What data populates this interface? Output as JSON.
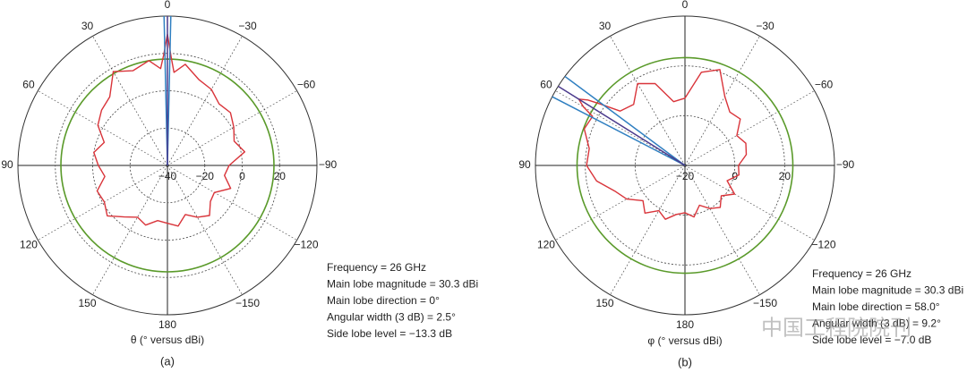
{
  "chart_data": [
    {
      "type": "polar",
      "axis_label": "θ (° versus dBi)",
      "panel_label": "(a)",
      "annotations": [
        "Frequency = 26 GHz",
        "Main lobe magnitude = 30.3 dBi",
        "Main lobe direction = 0°",
        "Angular width (3 dB) = 2.5°",
        "Side lobe level = −13.3 dB"
      ],
      "theta": [
        -180,
        -170,
        -160,
        -150,
        -140,
        -130,
        -120,
        -110,
        -100,
        -90,
        -80,
        -70,
        -60,
        -50,
        -40,
        -30,
        -20,
        -10,
        -4,
        -2,
        0,
        2,
        4,
        10,
        20,
        30,
        40,
        50,
        60,
        70,
        80,
        90,
        100,
        110,
        120,
        130,
        140,
        150,
        160,
        170
      ],
      "values": [
        -9,
        -7,
        -12,
        -8,
        -5,
        -10,
        -11,
        -4,
        -9,
        -7,
        2,
        -2,
        1,
        4,
        3,
        7,
        9,
        15,
        10,
        18,
        30.3,
        19,
        12,
        17,
        14,
        18,
        8,
        6,
        3,
        -4,
        0,
        -3,
        -6,
        0,
        -1,
        2,
        -4,
        -8,
        -6,
        -10
      ],
      "color": "#d9343a",
      "rlim": [
        -40,
        40
      ],
      "rticks": [
        {
          "value": -40,
          "label": "−40"
        },
        {
          "value": -20,
          "label": "−20"
        },
        0,
        20
      ],
      "thetaticks": [
        0,
        {
          "value": -30,
          "label": "−30"
        },
        30,
        60,
        {
          "value": -60,
          "label": "−60"
        },
        90,
        {
          "value": -90,
          "label": "−90"
        },
        120,
        {
          "value": -120,
          "label": "−120"
        },
        150,
        {
          "value": -150,
          "label": "−150"
        },
        180
      ],
      "sidelobe_circle": {
        "r": 17,
        "color": "#5a9a2a"
      },
      "reference_lines": [
        {
          "angle": -1.3,
          "color": "#2f7fc1"
        },
        {
          "angle": 1.3,
          "color": "#2f7fc1"
        },
        {
          "angle": 0,
          "color": "#4b3a8c"
        }
      ]
    },
    {
      "type": "polar",
      "axis_label": "φ (° versus dBi)",
      "panel_label": "(b)",
      "annotations": [
        "Frequency = 26 GHz",
        "Main lobe magnitude = 30.3 dBi",
        "Main lobe direction = 58.0°",
        "Angular width (3 dB) = 9.2°",
        "Side lobe level = −7.0 dB"
      ],
      "watermark": "中国工程院院刊",
      "theta": [
        -180,
        -170,
        -160,
        -150,
        -140,
        -130,
        -120,
        -110,
        -100,
        -90,
        -80,
        -70,
        -60,
        -50,
        -40,
        -30,
        -20,
        -10,
        0,
        10,
        20,
        30,
        40,
        50,
        54,
        56,
        58,
        60,
        62,
        70,
        80,
        90,
        100,
        110,
        120,
        130,
        140,
        150,
        160,
        170
      ],
      "values": [
        -1,
        1,
        -3,
        0,
        2,
        -1,
        3,
        -2,
        2,
        1.5,
        5,
        6,
        4,
        9,
        8,
        12,
        21,
        18,
        7,
        6,
        15,
        18,
        12,
        14,
        22,
        27,
        30.3,
        27,
        22,
        23,
        19,
        19.5,
        16,
        10,
        7,
        2,
        5,
        1,
        3,
        0
      ],
      "color": "#d9343a",
      "rlim": [
        -20,
        40
      ],
      "rticks": [
        {
          "value": -20,
          "label": "−20"
        },
        0,
        20
      ],
      "thetaticks": [
        0,
        {
          "value": -30,
          "label": "−30"
        },
        30,
        60,
        {
          "value": -60,
          "label": "−60"
        },
        90,
        {
          "value": -90,
          "label": "−90"
        },
        120,
        {
          "value": -120,
          "label": "−120"
        },
        150,
        {
          "value": -150,
          "label": "−150"
        },
        180
      ],
      "sidelobe_circle": {
        "r": 23.3,
        "color": "#5a9a2a"
      },
      "reference_lines": [
        {
          "angle": 53.4,
          "color": "#2f7fc1"
        },
        {
          "angle": 62.6,
          "color": "#2f7fc1"
        },
        {
          "angle": 58,
          "color": "#4b3a8c"
        }
      ]
    }
  ]
}
